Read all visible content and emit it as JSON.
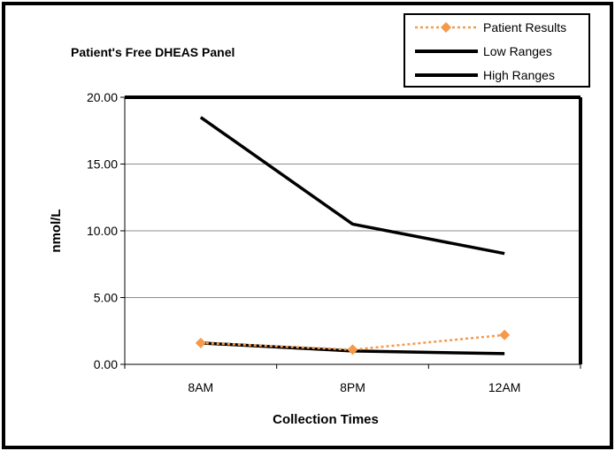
{
  "chart_data": {
    "type": "line",
    "title": "Patient's Free  DHEAS  Panel",
    "xlabel": "Collection Times",
    "ylabel": "nmol/L",
    "categories": [
      "8AM",
      "8PM",
      "12AM"
    ],
    "ylim": [
      0,
      20
    ],
    "yticks": [
      "0.00",
      "5.00",
      "10.00",
      "15.00",
      "20.00"
    ],
    "grid": "horizontal",
    "legend_position": "top-right",
    "series": [
      {
        "name": "Patient Results",
        "values": [
          1.6,
          1.1,
          2.2
        ],
        "color": "#f59a4a",
        "style": "dotted",
        "marker": "diamond"
      },
      {
        "name": "Low Ranges",
        "values": [
          1.6,
          1.0,
          0.8
        ],
        "color": "#000000",
        "style": "solid",
        "marker": "none"
      },
      {
        "name": "High Ranges",
        "values": [
          18.5,
          10.5,
          8.3
        ],
        "color": "#000000",
        "style": "solid",
        "marker": "none"
      }
    ]
  }
}
